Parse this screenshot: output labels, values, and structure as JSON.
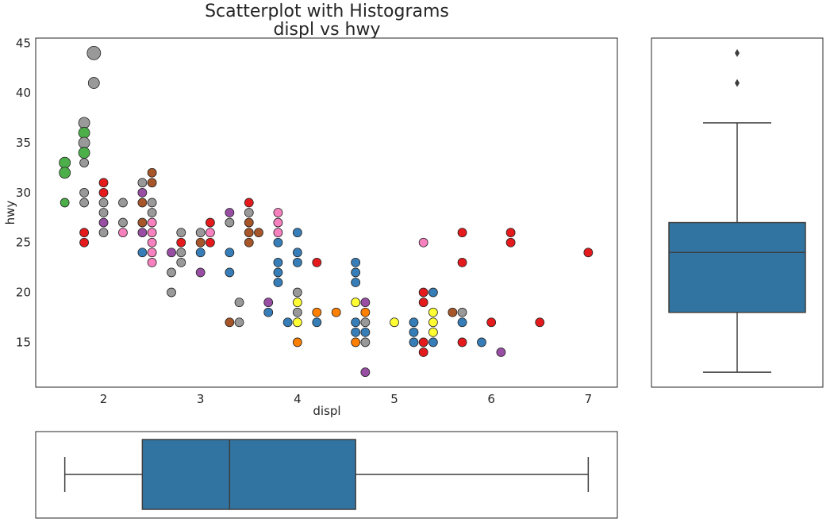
{
  "chart_data": [
    {
      "type": "scatter",
      "title": "Scatterplot with Histograms",
      "subtitle": "displ vs hwy",
      "xlabel": "displ",
      "ylabel": "hwy",
      "xlim": [
        1.3,
        7.3
      ],
      "ylim": [
        10.5,
        45.5
      ],
      "xticks": [
        2,
        3,
        4,
        5,
        6,
        7
      ],
      "yticks": [
        15,
        20,
        25,
        30,
        35,
        40,
        45
      ],
      "grid": false,
      "point_size_encodes": "count of overlapping observations",
      "categories_palette": {
        "red": "#e41a1c",
        "blue": "#377eb8",
        "green": "#4daf4a",
        "purple": "#984ea3",
        "orange": "#ff7f00",
        "yellow": "#ffff33",
        "brown": "#a65628",
        "pink": "#f781bf",
        "gray": "#999999"
      },
      "points": [
        {
          "x": 1.6,
          "y": 33,
          "c": "green",
          "n": 2
        },
        {
          "x": 1.6,
          "y": 32,
          "c": "green",
          "n": 2
        },
        {
          "x": 1.6,
          "y": 29,
          "c": "green",
          "n": 1
        },
        {
          "x": 1.8,
          "y": 37,
          "c": "gray",
          "n": 2
        },
        {
          "x": 1.8,
          "y": 36,
          "c": "green",
          "n": 2
        },
        {
          "x": 1.8,
          "y": 35,
          "c": "gray",
          "n": 2
        },
        {
          "x": 1.8,
          "y": 34,
          "c": "green",
          "n": 2
        },
        {
          "x": 1.8,
          "y": 33,
          "c": "gray",
          "n": 1
        },
        {
          "x": 1.8,
          "y": 30,
          "c": "gray",
          "n": 1
        },
        {
          "x": 1.8,
          "y": 29,
          "c": "gray",
          "n": 1
        },
        {
          "x": 1.8,
          "y": 26,
          "c": "red",
          "n": 1
        },
        {
          "x": 1.8,
          "y": 25,
          "c": "red",
          "n": 1
        },
        {
          "x": 1.9,
          "y": 44,
          "c": "gray",
          "n": 3
        },
        {
          "x": 1.9,
          "y": 41,
          "c": "gray",
          "n": 2
        },
        {
          "x": 2.0,
          "y": 31,
          "c": "red",
          "n": 1
        },
        {
          "x": 2.0,
          "y": 30,
          "c": "red",
          "n": 1
        },
        {
          "x": 2.0,
          "y": 29,
          "c": "gray",
          "n": 1
        },
        {
          "x": 2.0,
          "y": 28,
          "c": "gray",
          "n": 1
        },
        {
          "x": 2.0,
          "y": 27,
          "c": "purple",
          "n": 1
        },
        {
          "x": 2.0,
          "y": 26,
          "c": "gray",
          "n": 1
        },
        {
          "x": 2.2,
          "y": 29,
          "c": "gray",
          "n": 1
        },
        {
          "x": 2.2,
          "y": 27,
          "c": "gray",
          "n": 1
        },
        {
          "x": 2.2,
          "y": 26,
          "c": "pink",
          "n": 1
        },
        {
          "x": 2.4,
          "y": 31,
          "c": "gray",
          "n": 1
        },
        {
          "x": 2.4,
          "y": 30,
          "c": "purple",
          "n": 1
        },
        {
          "x": 2.4,
          "y": 29,
          "c": "brown",
          "n": 1
        },
        {
          "x": 2.4,
          "y": 27,
          "c": "brown",
          "n": 1
        },
        {
          "x": 2.4,
          "y": 26,
          "c": "purple",
          "n": 1
        },
        {
          "x": 2.4,
          "y": 24,
          "c": "blue",
          "n": 1
        },
        {
          "x": 2.5,
          "y": 32,
          "c": "brown",
          "n": 1
        },
        {
          "x": 2.5,
          "y": 31,
          "c": "brown",
          "n": 1
        },
        {
          "x": 2.5,
          "y": 29,
          "c": "gray",
          "n": 1
        },
        {
          "x": 2.5,
          "y": 28,
          "c": "gray",
          "n": 1
        },
        {
          "x": 2.5,
          "y": 27,
          "c": "pink",
          "n": 1
        },
        {
          "x": 2.5,
          "y": 26,
          "c": "pink",
          "n": 1
        },
        {
          "x": 2.5,
          "y": 25,
          "c": "pink",
          "n": 1
        },
        {
          "x": 2.5,
          "y": 24,
          "c": "pink",
          "n": 1
        },
        {
          "x": 2.5,
          "y": 23,
          "c": "pink",
          "n": 1
        },
        {
          "x": 2.7,
          "y": 24,
          "c": "purple",
          "n": 1
        },
        {
          "x": 2.7,
          "y": 22,
          "c": "gray",
          "n": 1
        },
        {
          "x": 2.7,
          "y": 20,
          "c": "gray",
          "n": 1
        },
        {
          "x": 2.8,
          "y": 26,
          "c": "gray",
          "n": 1
        },
        {
          "x": 2.8,
          "y": 25,
          "c": "red",
          "n": 1
        },
        {
          "x": 2.8,
          "y": 24,
          "c": "gray",
          "n": 1
        },
        {
          "x": 2.8,
          "y": 23,
          "c": "gray",
          "n": 1
        },
        {
          "x": 3.0,
          "y": 26,
          "c": "gray",
          "n": 1
        },
        {
          "x": 3.0,
          "y": 25,
          "c": "brown",
          "n": 1
        },
        {
          "x": 3.0,
          "y": 24,
          "c": "blue",
          "n": 1
        },
        {
          "x": 3.0,
          "y": 22,
          "c": "purple",
          "n": 1
        },
        {
          "x": 3.1,
          "y": 27,
          "c": "red",
          "n": 1
        },
        {
          "x": 3.1,
          "y": 26,
          "c": "pink",
          "n": 1
        },
        {
          "x": 3.1,
          "y": 25,
          "c": "red",
          "n": 1
        },
        {
          "x": 3.3,
          "y": 28,
          "c": "purple",
          "n": 1
        },
        {
          "x": 3.3,
          "y": 27,
          "c": "gray",
          "n": 1
        },
        {
          "x": 3.3,
          "y": 24,
          "c": "blue",
          "n": 1
        },
        {
          "x": 3.3,
          "y": 22,
          "c": "blue",
          "n": 1
        },
        {
          "x": 3.3,
          "y": 17,
          "c": "brown",
          "n": 1
        },
        {
          "x": 3.4,
          "y": 19,
          "c": "gray",
          "n": 1
        },
        {
          "x": 3.4,
          "y": 17,
          "c": "gray",
          "n": 1
        },
        {
          "x": 3.5,
          "y": 29,
          "c": "red",
          "n": 1
        },
        {
          "x": 3.5,
          "y": 28,
          "c": "gray",
          "n": 1
        },
        {
          "x": 3.5,
          "y": 27,
          "c": "brown",
          "n": 1
        },
        {
          "x": 3.5,
          "y": 26,
          "c": "brown",
          "n": 1
        },
        {
          "x": 3.5,
          "y": 25,
          "c": "brown",
          "n": 1
        },
        {
          "x": 3.6,
          "y": 26,
          "c": "brown",
          "n": 1
        },
        {
          "x": 3.7,
          "y": 19,
          "c": "purple",
          "n": 1
        },
        {
          "x": 3.7,
          "y": 18,
          "c": "blue",
          "n": 1
        },
        {
          "x": 3.8,
          "y": 28,
          "c": "pink",
          "n": 1
        },
        {
          "x": 3.8,
          "y": 27,
          "c": "pink",
          "n": 1
        },
        {
          "x": 3.8,
          "y": 26,
          "c": "pink",
          "n": 1
        },
        {
          "x": 3.8,
          "y": 25,
          "c": "blue",
          "n": 1
        },
        {
          "x": 3.8,
          "y": 23,
          "c": "blue",
          "n": 1
        },
        {
          "x": 3.8,
          "y": 22,
          "c": "blue",
          "n": 1
        },
        {
          "x": 3.8,
          "y": 21,
          "c": "blue",
          "n": 1
        },
        {
          "x": 3.9,
          "y": 17,
          "c": "blue",
          "n": 1
        },
        {
          "x": 4.0,
          "y": 26,
          "c": "blue",
          "n": 1
        },
        {
          "x": 4.0,
          "y": 24,
          "c": "blue",
          "n": 1
        },
        {
          "x": 4.0,
          "y": 23,
          "c": "blue",
          "n": 1
        },
        {
          "x": 4.0,
          "y": 20,
          "c": "gray",
          "n": 1
        },
        {
          "x": 4.0,
          "y": 19,
          "c": "yellow",
          "n": 1
        },
        {
          "x": 4.0,
          "y": 18,
          "c": "gray",
          "n": 1
        },
        {
          "x": 4.0,
          "y": 17,
          "c": "yellow",
          "n": 1
        },
        {
          "x": 4.0,
          "y": 15,
          "c": "orange",
          "n": 1
        },
        {
          "x": 4.2,
          "y": 23,
          "c": "red",
          "n": 1
        },
        {
          "x": 4.2,
          "y": 18,
          "c": "orange",
          "n": 1
        },
        {
          "x": 4.2,
          "y": 17,
          "c": "blue",
          "n": 1
        },
        {
          "x": 4.4,
          "y": 18,
          "c": "orange",
          "n": 1
        },
        {
          "x": 4.6,
          "y": 23,
          "c": "blue",
          "n": 1
        },
        {
          "x": 4.6,
          "y": 22,
          "c": "blue",
          "n": 1
        },
        {
          "x": 4.6,
          "y": 21,
          "c": "blue",
          "n": 1
        },
        {
          "x": 4.6,
          "y": 19,
          "c": "yellow",
          "n": 1
        },
        {
          "x": 4.6,
          "y": 17,
          "c": "blue",
          "n": 1
        },
        {
          "x": 4.6,
          "y": 16,
          "c": "blue",
          "n": 1
        },
        {
          "x": 4.6,
          "y": 15,
          "c": "orange",
          "n": 1
        },
        {
          "x": 4.7,
          "y": 19,
          "c": "purple",
          "n": 1
        },
        {
          "x": 4.7,
          "y": 18,
          "c": "orange",
          "n": 1
        },
        {
          "x": 4.7,
          "y": 17,
          "c": "gray",
          "n": 1
        },
        {
          "x": 4.7,
          "y": 16,
          "c": "blue",
          "n": 1
        },
        {
          "x": 4.7,
          "y": 15,
          "c": "gray",
          "n": 1
        },
        {
          "x": 4.7,
          "y": 12,
          "c": "purple",
          "n": 1
        },
        {
          "x": 5.0,
          "y": 17,
          "c": "yellow",
          "n": 1
        },
        {
          "x": 5.2,
          "y": 17,
          "c": "blue",
          "n": 1
        },
        {
          "x": 5.2,
          "y": 16,
          "c": "blue",
          "n": 1
        },
        {
          "x": 5.2,
          "y": 15,
          "c": "blue",
          "n": 1
        },
        {
          "x": 5.3,
          "y": 25,
          "c": "pink",
          "n": 1
        },
        {
          "x": 5.3,
          "y": 20,
          "c": "red",
          "n": 1
        },
        {
          "x": 5.3,
          "y": 19,
          "c": "red",
          "n": 1
        },
        {
          "x": 5.3,
          "y": 15,
          "c": "red",
          "n": 1
        },
        {
          "x": 5.3,
          "y": 14,
          "c": "red",
          "n": 1
        },
        {
          "x": 5.4,
          "y": 20,
          "c": "blue",
          "n": 1
        },
        {
          "x": 5.4,
          "y": 18,
          "c": "yellow",
          "n": 1
        },
        {
          "x": 5.4,
          "y": 17,
          "c": "yellow",
          "n": 1
        },
        {
          "x": 5.4,
          "y": 16,
          "c": "yellow",
          "n": 1
        },
        {
          "x": 5.4,
          "y": 15,
          "c": "blue",
          "n": 1
        },
        {
          "x": 5.6,
          "y": 18,
          "c": "brown",
          "n": 1
        },
        {
          "x": 5.7,
          "y": 26,
          "c": "red",
          "n": 1
        },
        {
          "x": 5.7,
          "y": 23,
          "c": "red",
          "n": 1
        },
        {
          "x": 5.7,
          "y": 18,
          "c": "gray",
          "n": 1
        },
        {
          "x": 5.7,
          "y": 17,
          "c": "blue",
          "n": 1
        },
        {
          "x": 5.7,
          "y": 15,
          "c": "red",
          "n": 1
        },
        {
          "x": 5.9,
          "y": 15,
          "c": "blue",
          "n": 1
        },
        {
          "x": 6.0,
          "y": 17,
          "c": "red",
          "n": 1
        },
        {
          "x": 6.1,
          "y": 14,
          "c": "purple",
          "n": 1
        },
        {
          "x": 6.2,
          "y": 26,
          "c": "red",
          "n": 1
        },
        {
          "x": 6.2,
          "y": 25,
          "c": "red",
          "n": 1
        },
        {
          "x": 6.5,
          "y": 17,
          "c": "red",
          "n": 1
        },
        {
          "x": 7.0,
          "y": 24,
          "c": "red",
          "n": 1
        }
      ]
    },
    {
      "type": "box",
      "orientation": "vertical",
      "variable": "hwy",
      "min": 12,
      "q1": 18,
      "median": 24,
      "q3": 27,
      "max": 37,
      "outliers": [
        41,
        44
      ],
      "color": "#3274a1"
    },
    {
      "type": "box",
      "orientation": "horizontal",
      "variable": "displ",
      "min": 1.6,
      "q1": 2.4,
      "median": 3.3,
      "q3": 4.6,
      "max": 7.0,
      "outliers": [],
      "color": "#3274a1"
    }
  ]
}
